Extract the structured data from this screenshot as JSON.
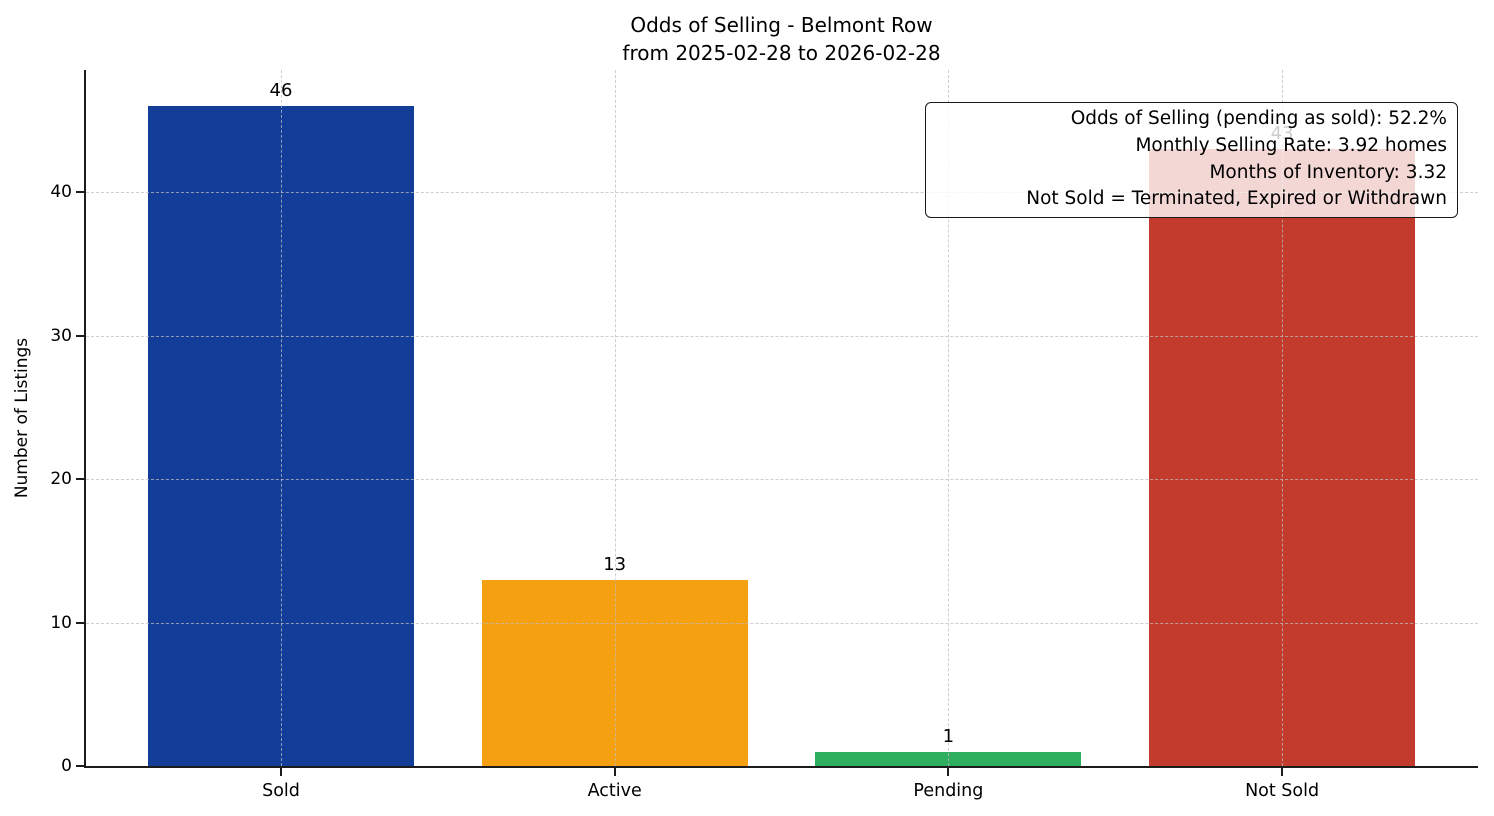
{
  "figure": {
    "title": "Odds of Selling - Belmont Row",
    "subtitle": "from 2025-02-28 to 2026-02-28"
  },
  "chart_data": {
    "type": "bar",
    "title": "Odds of Selling - Belmont Row",
    "subtitle": "from 2025-02-28 to 2026-02-28",
    "xlabel": "",
    "ylabel": "Number of Listings",
    "categories": [
      "Sold",
      "Active",
      "Pending",
      "Not Sold"
    ],
    "values": [
      46,
      13,
      1,
      43
    ],
    "bar_colors": [
      "#123e9a",
      "#f5a011",
      "#2eaf60",
      "#c33b2c"
    ],
    "yticks": [
      0,
      10,
      20,
      30,
      40
    ],
    "ylim": [
      0,
      48.5
    ],
    "grid": {
      "style": "dashed",
      "axes": "both",
      "color": "#d4d4d4"
    },
    "legend_position": "none",
    "annotation": {
      "position": "top-right",
      "lines": [
        "Odds of Selling (pending as sold): 52.2%",
        "Monthly Selling Rate: 3.92 homes",
        "Months of Inventory: 3.32",
        "Not Sold = Terminated, Expired or Withdrawn"
      ]
    }
  }
}
